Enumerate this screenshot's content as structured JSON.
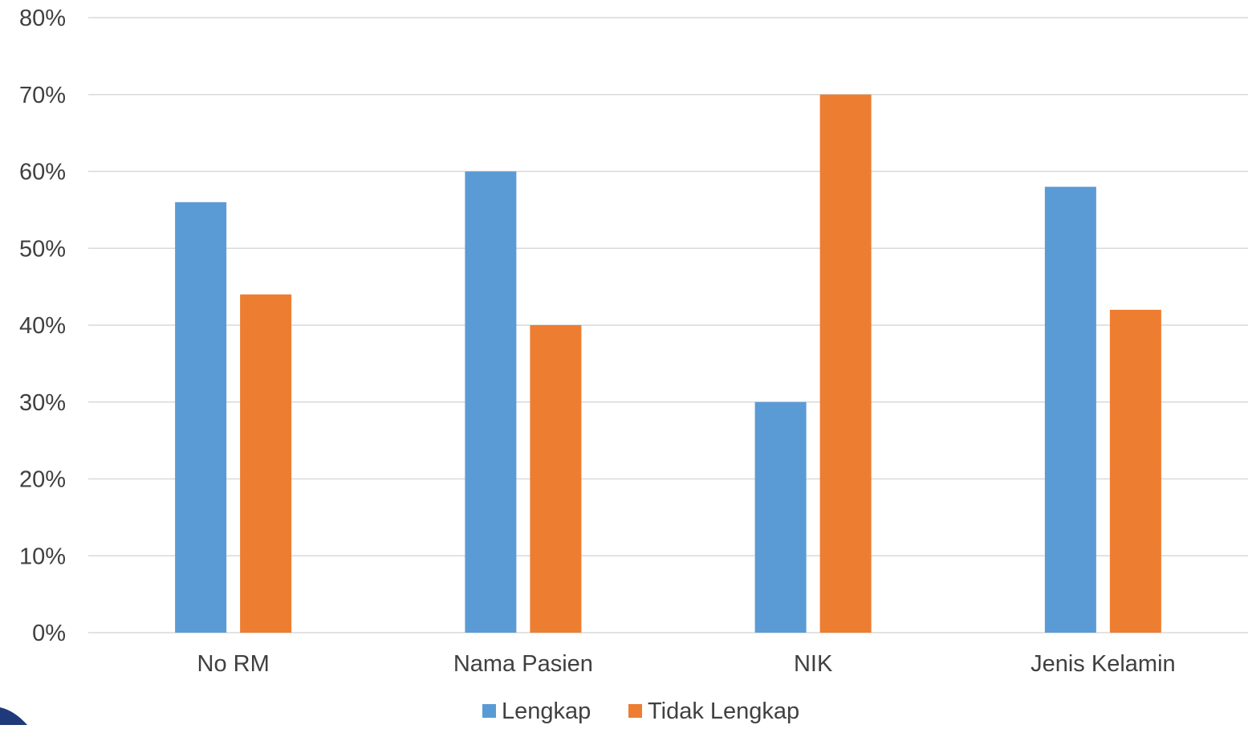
{
  "colors": {
    "lengkap": "#5B9BD5",
    "tidak_lengkap": "#ED7D31",
    "grid": "#D9D9D9",
    "text": "#404040"
  },
  "chart_data": {
    "type": "bar",
    "categories": [
      "No RM",
      "Nama Pasien",
      "NIK",
      "Jenis Kelamin"
    ],
    "series": [
      {
        "name": "Lengkap",
        "values": [
          56,
          60,
          30,
          58
        ]
      },
      {
        "name": "Tidak Lengkap",
        "values": [
          44,
          40,
          70,
          42
        ]
      }
    ],
    "y_ticks": [
      "0%",
      "10%",
      "20%",
      "30%",
      "40%",
      "50%",
      "60%",
      "70%",
      "80%"
    ],
    "ylim": [
      0,
      80
    ],
    "title": "",
    "xlabel": "",
    "ylabel": "",
    "grid": true,
    "legend_position": "bottom"
  }
}
